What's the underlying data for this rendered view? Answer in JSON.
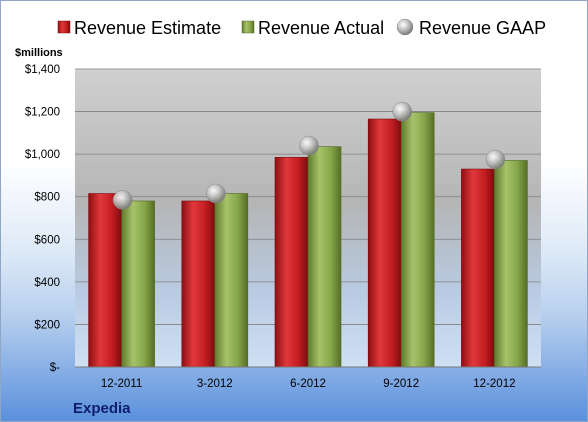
{
  "chart_data": {
    "type": "bar",
    "unit_label": "$millions",
    "company": "Expedia",
    "categories": [
      "12-2011",
      "3-2012",
      "6-2012",
      "9-2012",
      "12-2012"
    ],
    "series": [
      {
        "name": "Revenue Estimate",
        "type": "bar",
        "color": "#cc1f1f",
        "values": [
          815,
          780,
          985,
          1165,
          930
        ]
      },
      {
        "name": "Revenue Actual",
        "type": "bar",
        "color": "#8aaa4a",
        "values": [
          780,
          815,
          1035,
          1195,
          970
        ]
      },
      {
        "name": "Revenue GAAP",
        "type": "marker",
        "color": "#b8b8b8",
        "values": [
          785,
          815,
          1040,
          1200,
          975
        ]
      }
    ],
    "yticks": [
      0,
      200,
      400,
      600,
      800,
      1000,
      1200,
      1400
    ],
    "ytick_labels": [
      "$-",
      "$200",
      "$400",
      "$600",
      "$800",
      "$1,000",
      "$1,200",
      "$1,400"
    ],
    "ylim": [
      0,
      1400
    ],
    "grid": true,
    "legend_position": "top"
  }
}
